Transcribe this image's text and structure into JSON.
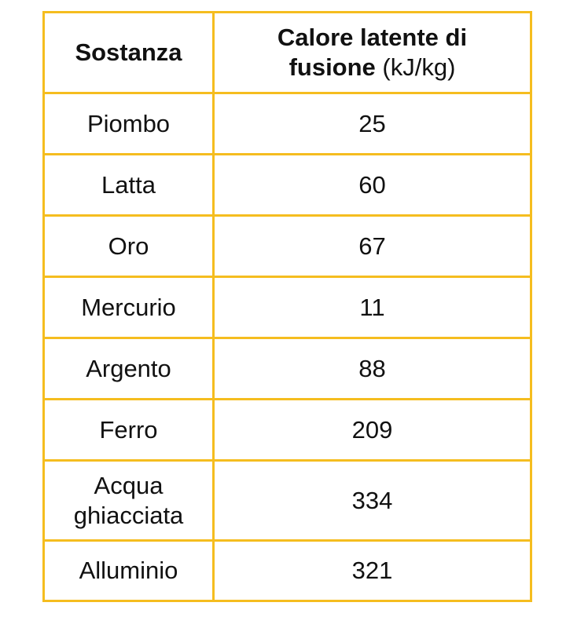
{
  "table": {
    "headers": {
      "substance": "Sostanza",
      "heat_line1": "Calore latente di",
      "heat_line2_bold": "fusione",
      "heat_unit": "(kJ/kg)"
    },
    "rows": [
      {
        "substance": "Piombo",
        "value": "25"
      },
      {
        "substance": "Latta",
        "value": "60"
      },
      {
        "substance": "Oro",
        "value": "67"
      },
      {
        "substance": "Mercurio",
        "value": "11"
      },
      {
        "substance": "Argento",
        "value": "88"
      },
      {
        "substance": "Ferro",
        "value": "209"
      },
      {
        "substance": "Acqua ghiacciata",
        "value": "334"
      },
      {
        "substance": "Alluminio",
        "value": "321"
      }
    ],
    "border_color": "#f5bd1f"
  }
}
